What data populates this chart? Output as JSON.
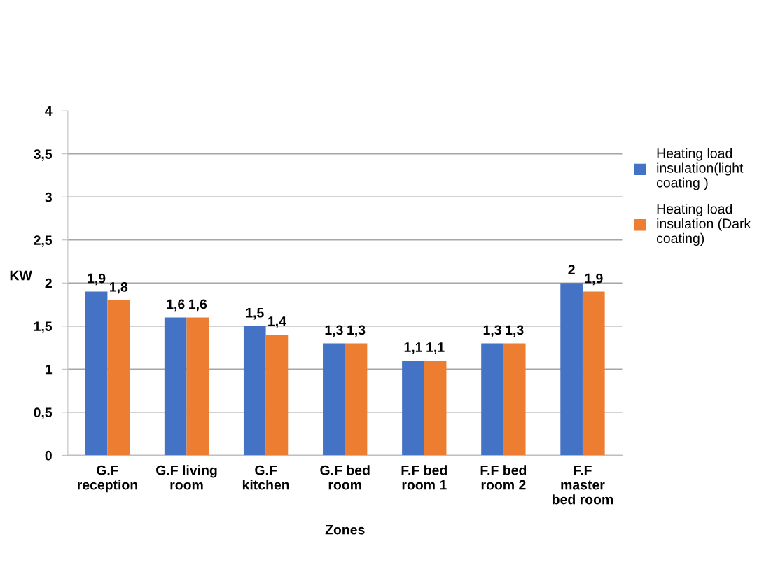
{
  "chart_data": {
    "type": "bar",
    "xlabel": "Zones",
    "ylabel": "KW",
    "categories": [
      "G.F\nreception",
      "G.F living\nroom",
      "G.F\nkitchen",
      "G.F bed\nroom",
      "F.F bed\nroom 1",
      "F.F bed\nroom 2",
      "F.F\nmaster\nbed room"
    ],
    "series": [
      {
        "name": " Heating load insulation(light coating )",
        "color": "#4472c4",
        "values": [
          1.9,
          1.6,
          1.5,
          1.3,
          1.1,
          1.3,
          2
        ],
        "value_labels": [
          "1,9",
          "1,6",
          "1,5",
          "1,3",
          "1,1",
          "1,3",
          "2"
        ]
      },
      {
        "name": "Heating load insulation (Dark coating)",
        "color": "#ed7d31",
        "values": [
          1.8,
          1.6,
          1.4,
          1.3,
          1.1,
          1.3,
          1.9
        ],
        "value_labels": [
          "1,8",
          "1,6",
          "1,4",
          "1,3",
          "1,1",
          "1,3",
          "1,9"
        ]
      }
    ],
    "ylim": [
      0,
      4
    ],
    "yticks": [
      0,
      {
        "value": 0.5,
        "label": "0,5"
      },
      1,
      {
        "value": 1.5,
        "label": "1,5"
      },
      2,
      {
        "value": 2.5,
        "label": "2,5"
      },
      3,
      {
        "value": 3.5,
        "label": "3,5"
      },
      4
    ],
    "grid": "y",
    "legend": "right"
  }
}
